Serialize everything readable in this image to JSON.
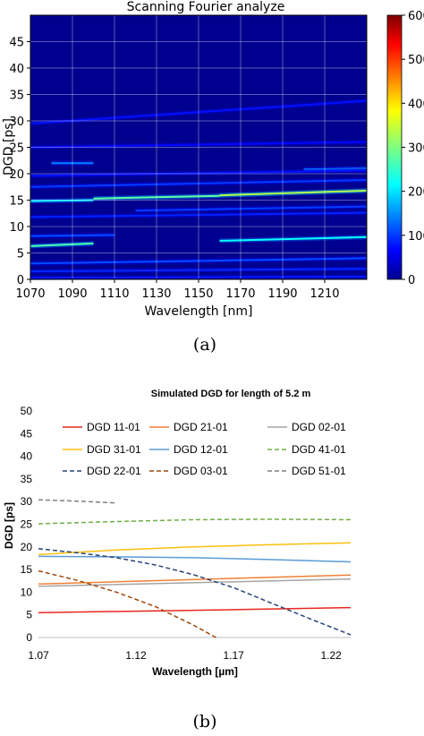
{
  "panel_a": {
    "caption": "(a)",
    "colorbar_ticks": [
      "600",
      "500",
      "400",
      "300",
      "200",
      "100",
      "0"
    ],
    "colorbar_range": [
      0,
      600
    ]
  },
  "panel_b": {
    "caption": "(b)"
  },
  "chart_data": [
    {
      "type": "heatmap",
      "title": "Scanning Fourier analyze",
      "xlabel": "Wavelength [nm]",
      "ylabel": "DGD [ps]",
      "xlim": [
        1070,
        1230
      ],
      "ylim": [
        0,
        50
      ],
      "xticks": [
        1070,
        1090,
        1110,
        1130,
        1150,
        1170,
        1190,
        1210
      ],
      "yticks": [
        0,
        5,
        10,
        15,
        20,
        25,
        30,
        35,
        40,
        45
      ],
      "grid": true,
      "colormap": "jet",
      "features": [
        {
          "x": [
            1070,
            1100
          ],
          "y": [
            14.8,
            15.0
          ],
          "intensity": 220
        },
        {
          "x": [
            1100,
            1160
          ],
          "y": [
            15.3,
            15.8
          ],
          "intensity": 280
        },
        {
          "x": [
            1160,
            1230
          ],
          "y": [
            15.9,
            16.8
          ],
          "intensity": 330
        },
        {
          "x": [
            1070,
            1100
          ],
          "y": [
            6.3,
            6.8
          ],
          "intensity": 270
        },
        {
          "x": [
            1160,
            1230
          ],
          "y": [
            7.3,
            8.0
          ],
          "intensity": 230
        },
        {
          "x": [
            1070,
            1110
          ],
          "y": [
            8.2,
            8.4
          ],
          "intensity": 120
        },
        {
          "x": [
            1120,
            1230
          ],
          "y": [
            13.0,
            13.8
          ],
          "intensity": 110
        },
        {
          "x": [
            1070,
            1230
          ],
          "y": [
            11.8,
            12.6
          ],
          "intensity": 95
        },
        {
          "x": [
            1070,
            1230
          ],
          "y": [
            17.5,
            18.8
          ],
          "intensity": 110
        },
        {
          "x": [
            1080,
            1100
          ],
          "y": [
            22.0,
            22.0
          ],
          "intensity": 150
        },
        {
          "x": [
            1200,
            1230
          ],
          "y": [
            20.8,
            21.0
          ],
          "intensity": 150
        },
        {
          "x": [
            1070,
            1230
          ],
          "y": [
            19.6,
            20.6
          ],
          "intensity": 85
        },
        {
          "x": [
            1070,
            1230
          ],
          "y": [
            25.0,
            26.0
          ],
          "intensity": 80
        },
        {
          "x": [
            1070,
            1230
          ],
          "y": [
            29.5,
            33.8
          ],
          "intensity": 85
        },
        {
          "x": [
            1070,
            1230
          ],
          "y": [
            3.0,
            4.0
          ],
          "intensity": 120
        },
        {
          "x": [
            1070,
            1230
          ],
          "y": [
            1.5,
            2.0
          ],
          "intensity": 100
        },
        {
          "x": [
            1070,
            1230
          ],
          "y": [
            0.3,
            0.5
          ],
          "intensity": 90
        }
      ]
    },
    {
      "type": "line",
      "title": "Simulated DGD for length of 5.2 m",
      "xlabel": "Wavelength [µm]",
      "ylabel": "DGD [ps]",
      "xlim": [
        1.07,
        1.23
      ],
      "ylim": [
        0,
        50
      ],
      "xticks": [
        "1.07",
        "1.12",
        "1.17",
        "1.22"
      ],
      "yticks": [
        0,
        5,
        10,
        15,
        20,
        25,
        30,
        35,
        40,
        45,
        50
      ],
      "grid": false,
      "legend_position": "top",
      "series": [
        {
          "name": "DGD 11-01",
          "color": "#e8271e",
          "dash": "solid",
          "x": [
            1.07,
            1.15,
            1.23
          ],
          "y": [
            5.5,
            6.0,
            6.6
          ]
        },
        {
          "name": "DGD 21-01",
          "color": "#ef8137",
          "dash": "solid",
          "x": [
            1.07,
            1.15,
            1.23
          ],
          "y": [
            11.8,
            12.8,
            13.8
          ]
        },
        {
          "name": "DGD 02-01",
          "color": "#a5a5a5",
          "dash": "solid",
          "x": [
            1.07,
            1.15,
            1.23
          ],
          "y": [
            11.3,
            12.1,
            12.9
          ]
        },
        {
          "name": "DGD 31-01",
          "color": "#fdc00e",
          "dash": "solid",
          "x": [
            1.07,
            1.11,
            1.15,
            1.19,
            1.23
          ],
          "y": [
            18.3,
            19.3,
            20.0,
            20.5,
            20.9
          ]
        },
        {
          "name": "DGD 12-01",
          "color": "#5b9bd5",
          "dash": "solid",
          "x": [
            1.07,
            1.11,
            1.15,
            1.19,
            1.23
          ],
          "y": [
            17.9,
            17.8,
            17.6,
            17.2,
            16.7
          ]
        },
        {
          "name": "DGD 41-01",
          "color": "#70ad47",
          "dash": "dashed",
          "x": [
            1.07,
            1.11,
            1.15,
            1.19,
            1.23
          ],
          "y": [
            25.1,
            25.6,
            26.0,
            26.1,
            26.0
          ]
        },
        {
          "name": "DGD 22-01",
          "color": "#264478",
          "dash": "dashed",
          "x": [
            1.07,
            1.09,
            1.11,
            1.13,
            1.15,
            1.17,
            1.19,
            1.21,
            1.23
          ],
          "y": [
            19.6,
            18.7,
            17.6,
            16.0,
            13.8,
            11.0,
            7.5,
            4.0,
            0.6
          ]
        },
        {
          "name": "DGD 03-01",
          "color": "#9e480e",
          "dash": "dashed",
          "x": [
            1.07,
            1.09,
            1.11,
            1.13,
            1.15,
            1.161
          ],
          "y": [
            14.7,
            12.6,
            10.0,
            6.8,
            2.6,
            0.0
          ]
        },
        {
          "name": "DGD 51-01",
          "color": "#7f7f7f",
          "dash": "dashed",
          "x": [
            1.07,
            1.09,
            1.11
          ],
          "y": [
            30.4,
            30.1,
            29.7
          ]
        }
      ]
    }
  ]
}
